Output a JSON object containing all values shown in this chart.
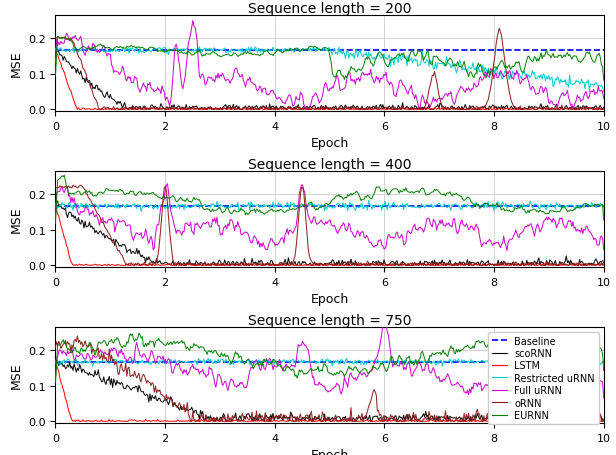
{
  "titles": [
    "Sequence length = 200",
    "Sequence length = 400",
    "Sequence length = 750"
  ],
  "xlabel": "Epoch",
  "ylabel": "MSE",
  "xlim": [
    0,
    10
  ],
  "ylim": [
    -0.005,
    0.265
  ],
  "yticks": [
    0.0,
    0.1,
    0.2
  ],
  "xticks": [
    0,
    2,
    4,
    6,
    8,
    10
  ],
  "colors": {
    "Baseline": "#0000ff",
    "scoRNN": "#000000",
    "LSTM": "#ff0000",
    "Restricted uRNN": "#00cccc",
    "Full uRNN": "#cc00cc",
    "oRNN": "#8b1a1a",
    "EURNN": "#008000"
  },
  "baseline_value": 0.167,
  "n_points": 500
}
